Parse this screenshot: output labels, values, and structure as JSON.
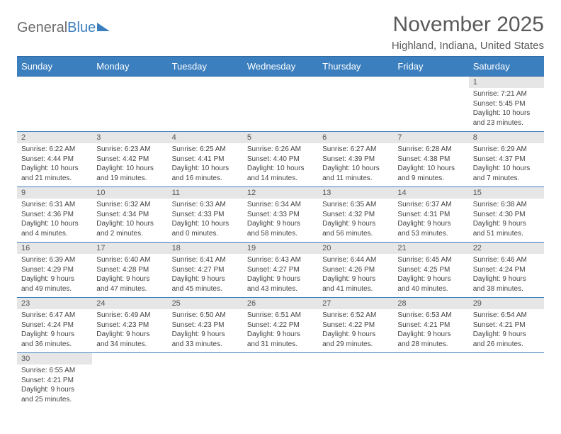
{
  "brand": {
    "part1": "General",
    "part2": "Blue"
  },
  "header": {
    "title": "November 2025",
    "location": "Highland, Indiana, United States"
  },
  "colors": {
    "header_bg": "#3b7fbf",
    "daynum_bg": "#e6e6e6",
    "row_border": "#3b7fbf"
  },
  "weekdays": [
    "Sunday",
    "Monday",
    "Tuesday",
    "Wednesday",
    "Thursday",
    "Friday",
    "Saturday"
  ],
  "weeks": [
    [
      null,
      null,
      null,
      null,
      null,
      null,
      {
        "n": "1",
        "sr": "Sunrise: 7:21 AM",
        "ss": "Sunset: 5:45 PM",
        "d1": "Daylight: 10 hours",
        "d2": "and 23 minutes."
      }
    ],
    [
      {
        "n": "2",
        "sr": "Sunrise: 6:22 AM",
        "ss": "Sunset: 4:44 PM",
        "d1": "Daylight: 10 hours",
        "d2": "and 21 minutes."
      },
      {
        "n": "3",
        "sr": "Sunrise: 6:23 AM",
        "ss": "Sunset: 4:42 PM",
        "d1": "Daylight: 10 hours",
        "d2": "and 19 minutes."
      },
      {
        "n": "4",
        "sr": "Sunrise: 6:25 AM",
        "ss": "Sunset: 4:41 PM",
        "d1": "Daylight: 10 hours",
        "d2": "and 16 minutes."
      },
      {
        "n": "5",
        "sr": "Sunrise: 6:26 AM",
        "ss": "Sunset: 4:40 PM",
        "d1": "Daylight: 10 hours",
        "d2": "and 14 minutes."
      },
      {
        "n": "6",
        "sr": "Sunrise: 6:27 AM",
        "ss": "Sunset: 4:39 PM",
        "d1": "Daylight: 10 hours",
        "d2": "and 11 minutes."
      },
      {
        "n": "7",
        "sr": "Sunrise: 6:28 AM",
        "ss": "Sunset: 4:38 PM",
        "d1": "Daylight: 10 hours",
        "d2": "and 9 minutes."
      },
      {
        "n": "8",
        "sr": "Sunrise: 6:29 AM",
        "ss": "Sunset: 4:37 PM",
        "d1": "Daylight: 10 hours",
        "d2": "and 7 minutes."
      }
    ],
    [
      {
        "n": "9",
        "sr": "Sunrise: 6:31 AM",
        "ss": "Sunset: 4:36 PM",
        "d1": "Daylight: 10 hours",
        "d2": "and 4 minutes."
      },
      {
        "n": "10",
        "sr": "Sunrise: 6:32 AM",
        "ss": "Sunset: 4:34 PM",
        "d1": "Daylight: 10 hours",
        "d2": "and 2 minutes."
      },
      {
        "n": "11",
        "sr": "Sunrise: 6:33 AM",
        "ss": "Sunset: 4:33 PM",
        "d1": "Daylight: 10 hours",
        "d2": "and 0 minutes."
      },
      {
        "n": "12",
        "sr": "Sunrise: 6:34 AM",
        "ss": "Sunset: 4:33 PM",
        "d1": "Daylight: 9 hours",
        "d2": "and 58 minutes."
      },
      {
        "n": "13",
        "sr": "Sunrise: 6:35 AM",
        "ss": "Sunset: 4:32 PM",
        "d1": "Daylight: 9 hours",
        "d2": "and 56 minutes."
      },
      {
        "n": "14",
        "sr": "Sunrise: 6:37 AM",
        "ss": "Sunset: 4:31 PM",
        "d1": "Daylight: 9 hours",
        "d2": "and 53 minutes."
      },
      {
        "n": "15",
        "sr": "Sunrise: 6:38 AM",
        "ss": "Sunset: 4:30 PM",
        "d1": "Daylight: 9 hours",
        "d2": "and 51 minutes."
      }
    ],
    [
      {
        "n": "16",
        "sr": "Sunrise: 6:39 AM",
        "ss": "Sunset: 4:29 PM",
        "d1": "Daylight: 9 hours",
        "d2": "and 49 minutes."
      },
      {
        "n": "17",
        "sr": "Sunrise: 6:40 AM",
        "ss": "Sunset: 4:28 PM",
        "d1": "Daylight: 9 hours",
        "d2": "and 47 minutes."
      },
      {
        "n": "18",
        "sr": "Sunrise: 6:41 AM",
        "ss": "Sunset: 4:27 PM",
        "d1": "Daylight: 9 hours",
        "d2": "and 45 minutes."
      },
      {
        "n": "19",
        "sr": "Sunrise: 6:43 AM",
        "ss": "Sunset: 4:27 PM",
        "d1": "Daylight: 9 hours",
        "d2": "and 43 minutes."
      },
      {
        "n": "20",
        "sr": "Sunrise: 6:44 AM",
        "ss": "Sunset: 4:26 PM",
        "d1": "Daylight: 9 hours",
        "d2": "and 41 minutes."
      },
      {
        "n": "21",
        "sr": "Sunrise: 6:45 AM",
        "ss": "Sunset: 4:25 PM",
        "d1": "Daylight: 9 hours",
        "d2": "and 40 minutes."
      },
      {
        "n": "22",
        "sr": "Sunrise: 6:46 AM",
        "ss": "Sunset: 4:24 PM",
        "d1": "Daylight: 9 hours",
        "d2": "and 38 minutes."
      }
    ],
    [
      {
        "n": "23",
        "sr": "Sunrise: 6:47 AM",
        "ss": "Sunset: 4:24 PM",
        "d1": "Daylight: 9 hours",
        "d2": "and 36 minutes."
      },
      {
        "n": "24",
        "sr": "Sunrise: 6:49 AM",
        "ss": "Sunset: 4:23 PM",
        "d1": "Daylight: 9 hours",
        "d2": "and 34 minutes."
      },
      {
        "n": "25",
        "sr": "Sunrise: 6:50 AM",
        "ss": "Sunset: 4:23 PM",
        "d1": "Daylight: 9 hours",
        "d2": "and 33 minutes."
      },
      {
        "n": "26",
        "sr": "Sunrise: 6:51 AM",
        "ss": "Sunset: 4:22 PM",
        "d1": "Daylight: 9 hours",
        "d2": "and 31 minutes."
      },
      {
        "n": "27",
        "sr": "Sunrise: 6:52 AM",
        "ss": "Sunset: 4:22 PM",
        "d1": "Daylight: 9 hours",
        "d2": "and 29 minutes."
      },
      {
        "n": "28",
        "sr": "Sunrise: 6:53 AM",
        "ss": "Sunset: 4:21 PM",
        "d1": "Daylight: 9 hours",
        "d2": "and 28 minutes."
      },
      {
        "n": "29",
        "sr": "Sunrise: 6:54 AM",
        "ss": "Sunset: 4:21 PM",
        "d1": "Daylight: 9 hours",
        "d2": "and 26 minutes."
      }
    ],
    [
      {
        "n": "30",
        "sr": "Sunrise: 6:55 AM",
        "ss": "Sunset: 4:21 PM",
        "d1": "Daylight: 9 hours",
        "d2": "and 25 minutes."
      },
      null,
      null,
      null,
      null,
      null,
      null
    ]
  ]
}
